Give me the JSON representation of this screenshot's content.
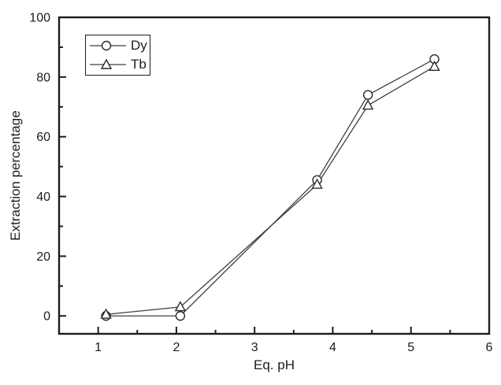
{
  "figure": {
    "background": "#ffffff",
    "axis_color": "#1c1c1c",
    "series_line_color": "#3f3f3f",
    "marker_stroke_color": "#2a2a2a",
    "marker_fill_color": "#ffffff",
    "text_color": "#1c1c1c"
  },
  "chart_data": {
    "type": "line",
    "title": "",
    "xlabel": "Eq. pH",
    "ylabel": "Extraction percentage",
    "xlim": [
      0.5,
      6.0
    ],
    "ylim": [
      -6,
      100
    ],
    "x_major_ticks": [
      1,
      2,
      3,
      4,
      5,
      6
    ],
    "x_minor_ticks": [
      1.5,
      2.5,
      3.5,
      4.5,
      5.5
    ],
    "y_major_ticks": [
      0,
      20,
      40,
      60,
      80,
      100
    ],
    "y_minor_ticks": [
      10,
      30,
      50,
      70,
      90
    ],
    "grid": false,
    "legend_position": "top-left",
    "legend_entries": [
      {
        "label": "Dy",
        "marker": "circle"
      },
      {
        "label": "Tb",
        "marker": "triangle"
      }
    ],
    "series": [
      {
        "name": "Dy",
        "marker": "circle",
        "x": [
          1.1,
          2.05,
          3.8,
          4.45,
          5.3
        ],
        "values": [
          0,
          0,
          45.5,
          74,
          86
        ]
      },
      {
        "name": "Tb",
        "marker": "triangle",
        "x": [
          1.1,
          2.05,
          3.8,
          4.45,
          5.3
        ],
        "values": [
          0.5,
          3,
          44,
          70.5,
          83.5
        ]
      }
    ]
  }
}
